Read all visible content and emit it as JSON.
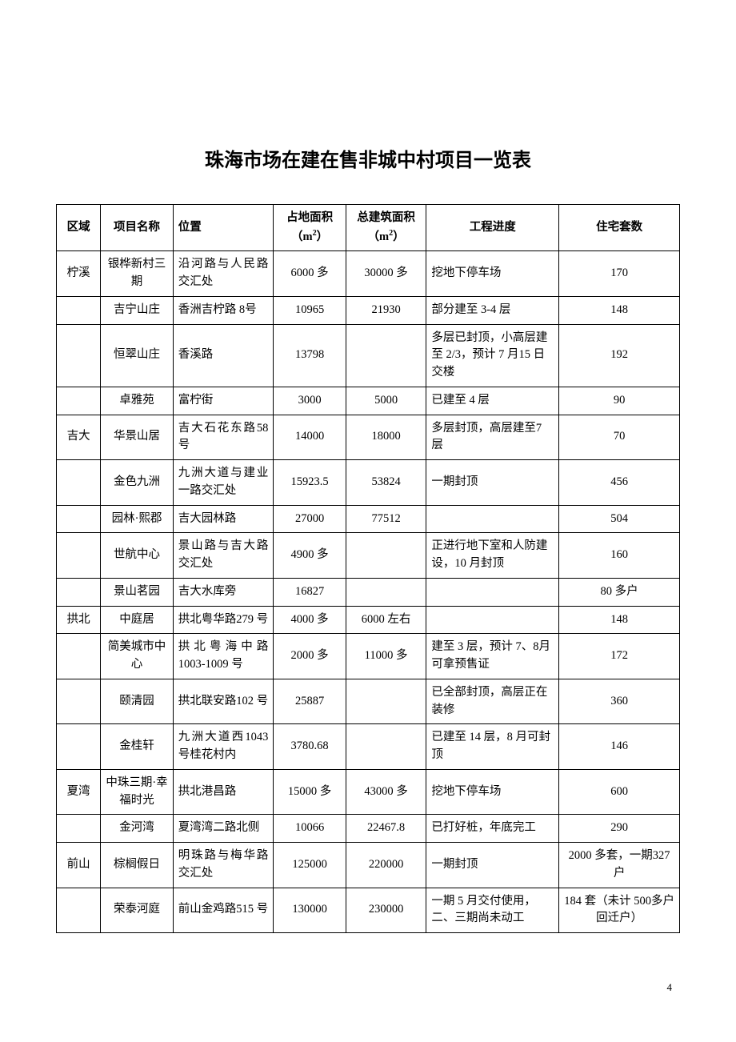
{
  "title": "珠海市场在建在售非城中村项目一览表",
  "page_number": "4",
  "columns": {
    "region": "区域",
    "name": "项目名称",
    "location": "位置",
    "land_area": "占地面积（m²）",
    "build_area": "总建筑面积（m²）",
    "progress": "工程进度",
    "units": "住宅套数"
  },
  "rows": [
    {
      "region": "柠溪",
      "name": "银桦新村三期",
      "location": "沿河路与人民路交汇处",
      "land_area": "6000 多",
      "build_area": "30000 多",
      "progress": "挖地下停车场",
      "units": "170"
    },
    {
      "region": "",
      "name": "吉宁山庄",
      "location": "香洲吉柠路 8号",
      "land_area": "10965",
      "build_area": "21930",
      "progress": "部分建至 3-4 层",
      "units": "148"
    },
    {
      "region": "",
      "name": "恒翠山庄",
      "location": "香溪路",
      "land_area": "13798",
      "build_area": "",
      "progress": "多层已封顶，小高层建至 2/3，预计 7 月15 日交楼",
      "units": "192"
    },
    {
      "region": "",
      "name": "卓雅苑",
      "location": "富柠街",
      "land_area": "3000",
      "build_area": "5000",
      "progress": "已建至 4 层",
      "units": "90"
    },
    {
      "region": "吉大",
      "name": "华景山居",
      "location": "吉大石花东路58 号",
      "land_area": "14000",
      "build_area": "18000",
      "progress": "多层封顶，高层建至7 层",
      "units": "70"
    },
    {
      "region": "",
      "name": "金色九洲",
      "location": "九洲大道与建业一路交汇处",
      "land_area": "15923.5",
      "build_area": "53824",
      "progress": "一期封顶",
      "units": "456"
    },
    {
      "region": "",
      "name": "园林·熙郡",
      "location": "吉大园林路",
      "land_area": "27000",
      "build_area": "77512",
      "progress": "",
      "units": "504"
    },
    {
      "region": "",
      "name": "世航中心",
      "location": "景山路与吉大路交汇处",
      "land_area": "4900 多",
      "build_area": "",
      "progress": "正进行地下室和人防建设，10 月封顶",
      "units": "160"
    },
    {
      "region": "",
      "name": "景山茗园",
      "location": "吉大水库旁",
      "land_area": "16827",
      "build_area": "",
      "progress": "",
      "units": "80 多户"
    },
    {
      "region": "拱北",
      "name": "中庭居",
      "location": "拱北粤华路279 号",
      "land_area": "4000 多",
      "build_area": "6000 左右",
      "progress": "",
      "units": "148"
    },
    {
      "region": "",
      "name": "简美城市中心",
      "location": "拱北粤海中路1003-1009 号",
      "land_area": "2000 多",
      "build_area": "11000 多",
      "progress": "建至 3 层，预计 7、8月可拿预售证",
      "units": "172"
    },
    {
      "region": "",
      "name": "颐清园",
      "location": "拱北联安路102 号",
      "land_area": "25887",
      "build_area": "",
      "progress": "已全部封顶，高层正在装修",
      "units": "360"
    },
    {
      "region": "",
      "name": "金桂轩",
      "location": "九洲大道西1043 号桂花村内",
      "land_area": "3780.68",
      "build_area": "",
      "progress": "已建至 14 层，8 月可封顶",
      "units": "146"
    },
    {
      "region": "夏湾",
      "name": "中珠三期·幸福时光",
      "location": "拱北港昌路",
      "land_area": "15000 多",
      "build_area": "43000 多",
      "progress": "挖地下停车场",
      "units": "600"
    },
    {
      "region": "",
      "name": "金河湾",
      "location": "夏湾湾二路北侧",
      "land_area": "10066",
      "build_area": "22467.8",
      "progress": "已打好桩，年底完工",
      "units": "290"
    },
    {
      "region": "前山",
      "name": "棕榈假日",
      "location": "明珠路与梅华路交汇处",
      "land_area": "125000",
      "build_area": "220000",
      "progress": "一期封顶",
      "units": "2000 多套，一期327 户"
    },
    {
      "region": "",
      "name": "荣泰河庭",
      "location": "前山金鸡路515 号",
      "land_area": "130000",
      "build_area": "230000",
      "progress": "一期 5 月交付使用，二、三期尚未动工",
      "units": "184 套（未计 500多户回迁户）"
    }
  ]
}
